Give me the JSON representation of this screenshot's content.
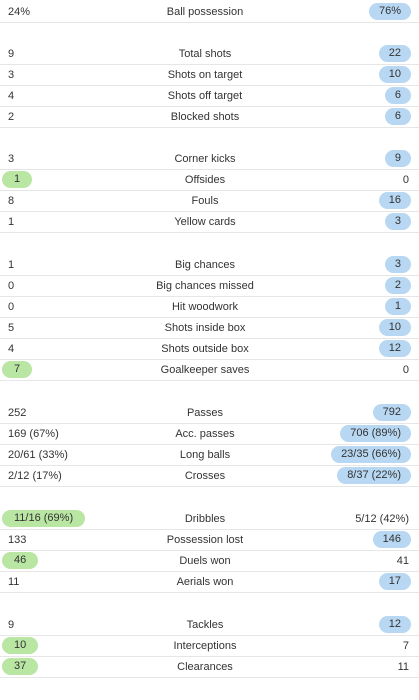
{
  "stats": [
    {
      "label": "Ball possession",
      "home": "24%",
      "away": "76%",
      "hi": "away"
    },
    {
      "label": "Total shots",
      "home": "9",
      "away": "22",
      "hi": "away"
    },
    {
      "label": "Shots on target",
      "home": "3",
      "away": "10",
      "hi": "away"
    },
    {
      "label": "Shots off target",
      "home": "4",
      "away": "6",
      "hi": "away"
    },
    {
      "label": "Blocked shots",
      "home": "2",
      "away": "6",
      "hi": "away"
    },
    {
      "label": "Corner kicks",
      "home": "3",
      "away": "9",
      "hi": "away"
    },
    {
      "label": "Offsides",
      "home": "1",
      "away": "0",
      "hi": "home"
    },
    {
      "label": "Fouls",
      "home": "8",
      "away": "16",
      "hi": "away"
    },
    {
      "label": "Yellow cards",
      "home": "1",
      "away": "3",
      "hi": "away"
    },
    {
      "label": "Big chances",
      "home": "1",
      "away": "3",
      "hi": "away"
    },
    {
      "label": "Big chances missed",
      "home": "0",
      "away": "2",
      "hi": "away"
    },
    {
      "label": "Hit woodwork",
      "home": "0",
      "away": "1",
      "hi": "away"
    },
    {
      "label": "Shots inside box",
      "home": "5",
      "away": "10",
      "hi": "away"
    },
    {
      "label": "Shots outside box",
      "home": "4",
      "away": "12",
      "hi": "away"
    },
    {
      "label": "Goalkeeper saves",
      "home": "7",
      "away": "0",
      "hi": "home"
    },
    {
      "label": "Passes",
      "home": "252",
      "away": "792",
      "hi": "away"
    },
    {
      "label": "Acc. passes",
      "home": "169 (67%)",
      "away": "706 (89%)",
      "hi": "away"
    },
    {
      "label": "Long balls",
      "home": "20/61 (33%)",
      "away": "23/35 (66%)",
      "hi": "away"
    },
    {
      "label": "Crosses",
      "home": "2/12 (17%)",
      "away": "8/37 (22%)",
      "hi": "away"
    },
    {
      "label": "Dribbles",
      "home": "11/16 (69%)",
      "away": "5/12 (42%)",
      "hi": "home"
    },
    {
      "label": "Possession lost",
      "home": "133",
      "away": "146",
      "hi": "away"
    },
    {
      "label": "Duels won",
      "home": "46",
      "away": "41",
      "hi": "home"
    },
    {
      "label": "Aerials won",
      "home": "11",
      "away": "17",
      "hi": "away"
    },
    {
      "label": "Tackles",
      "home": "9",
      "away": "12",
      "hi": "away"
    },
    {
      "label": "Interceptions",
      "home": "10",
      "away": "7",
      "hi": "home"
    },
    {
      "label": "Clearances",
      "home": "37",
      "away": "11",
      "hi": "home"
    }
  ]
}
